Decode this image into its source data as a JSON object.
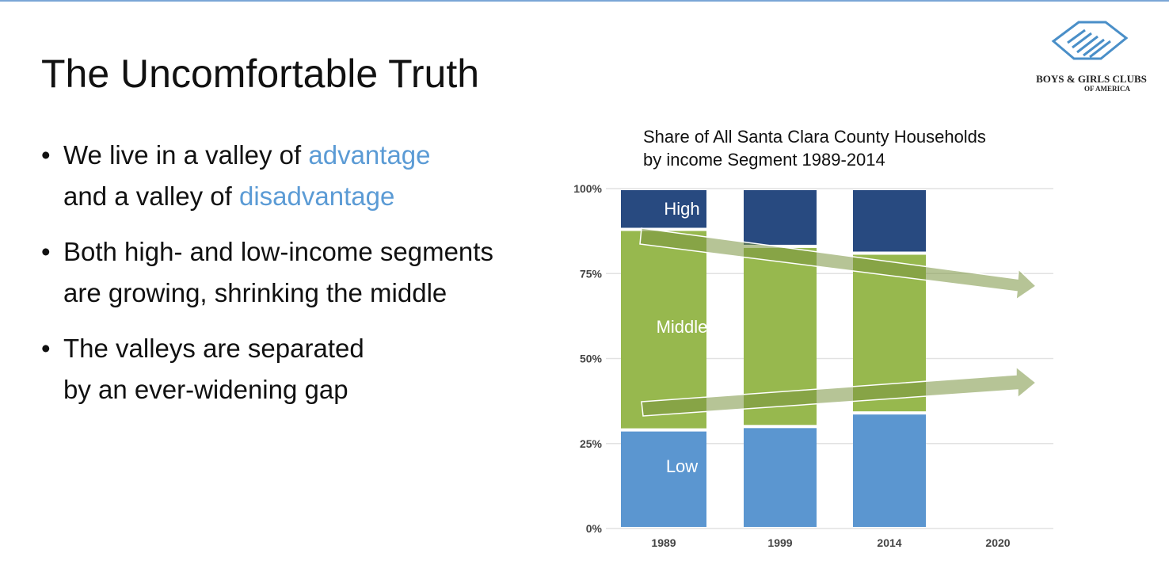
{
  "slide": {
    "title": "The Uncomfortable Truth",
    "bullets": [
      {
        "parts": [
          {
            "text": "We live in a valley of ",
            "accent": false
          },
          {
            "text": "advantage",
            "accent": true
          }
        ]
      },
      {
        "parts": [
          {
            "text": "and a valley of ",
            "accent": false
          },
          {
            "text": "disadvantage",
            "accent": true
          }
        ]
      },
      {
        "text1": "Both high- and low-income segments",
        "text2": "are growing, shrinking the middle"
      },
      {
        "text1": "The valleys are separated",
        "text2": "by an ever-widening gap"
      }
    ],
    "logo": {
      "name": "BOYS & GIRLS CLUBS",
      "sub": "OF AMERICA"
    }
  },
  "chart_data": {
    "type": "bar",
    "stacked": true,
    "title_line1": "Share of All Santa Clara County Households",
    "title_line2": "by income Segment 1989-2014",
    "categories": [
      "1989",
      "1999",
      "2014",
      "2020"
    ],
    "series": [
      {
        "name": "Low",
        "color": "#5b96d0",
        "values": [
          29,
          30,
          34,
          null
        ]
      },
      {
        "name": "Middle",
        "color": "#97b84e",
        "values": [
          59,
          53,
          47,
          null
        ]
      },
      {
        "name": "High",
        "color": "#284a80",
        "values": [
          12,
          17,
          19,
          null
        ]
      }
    ],
    "segment_labels": [
      "High",
      "Middle",
      "Low"
    ],
    "yticks": [
      "0%",
      "25%",
      "50%",
      "75%",
      "100%"
    ],
    "ylim": [
      0,
      100
    ],
    "grid": true,
    "annotations": [
      "downward trend arrow over middle top (high growing)",
      "upward trend arrow over middle bottom (low growing)"
    ],
    "arrow_color": "#7a9440"
  }
}
